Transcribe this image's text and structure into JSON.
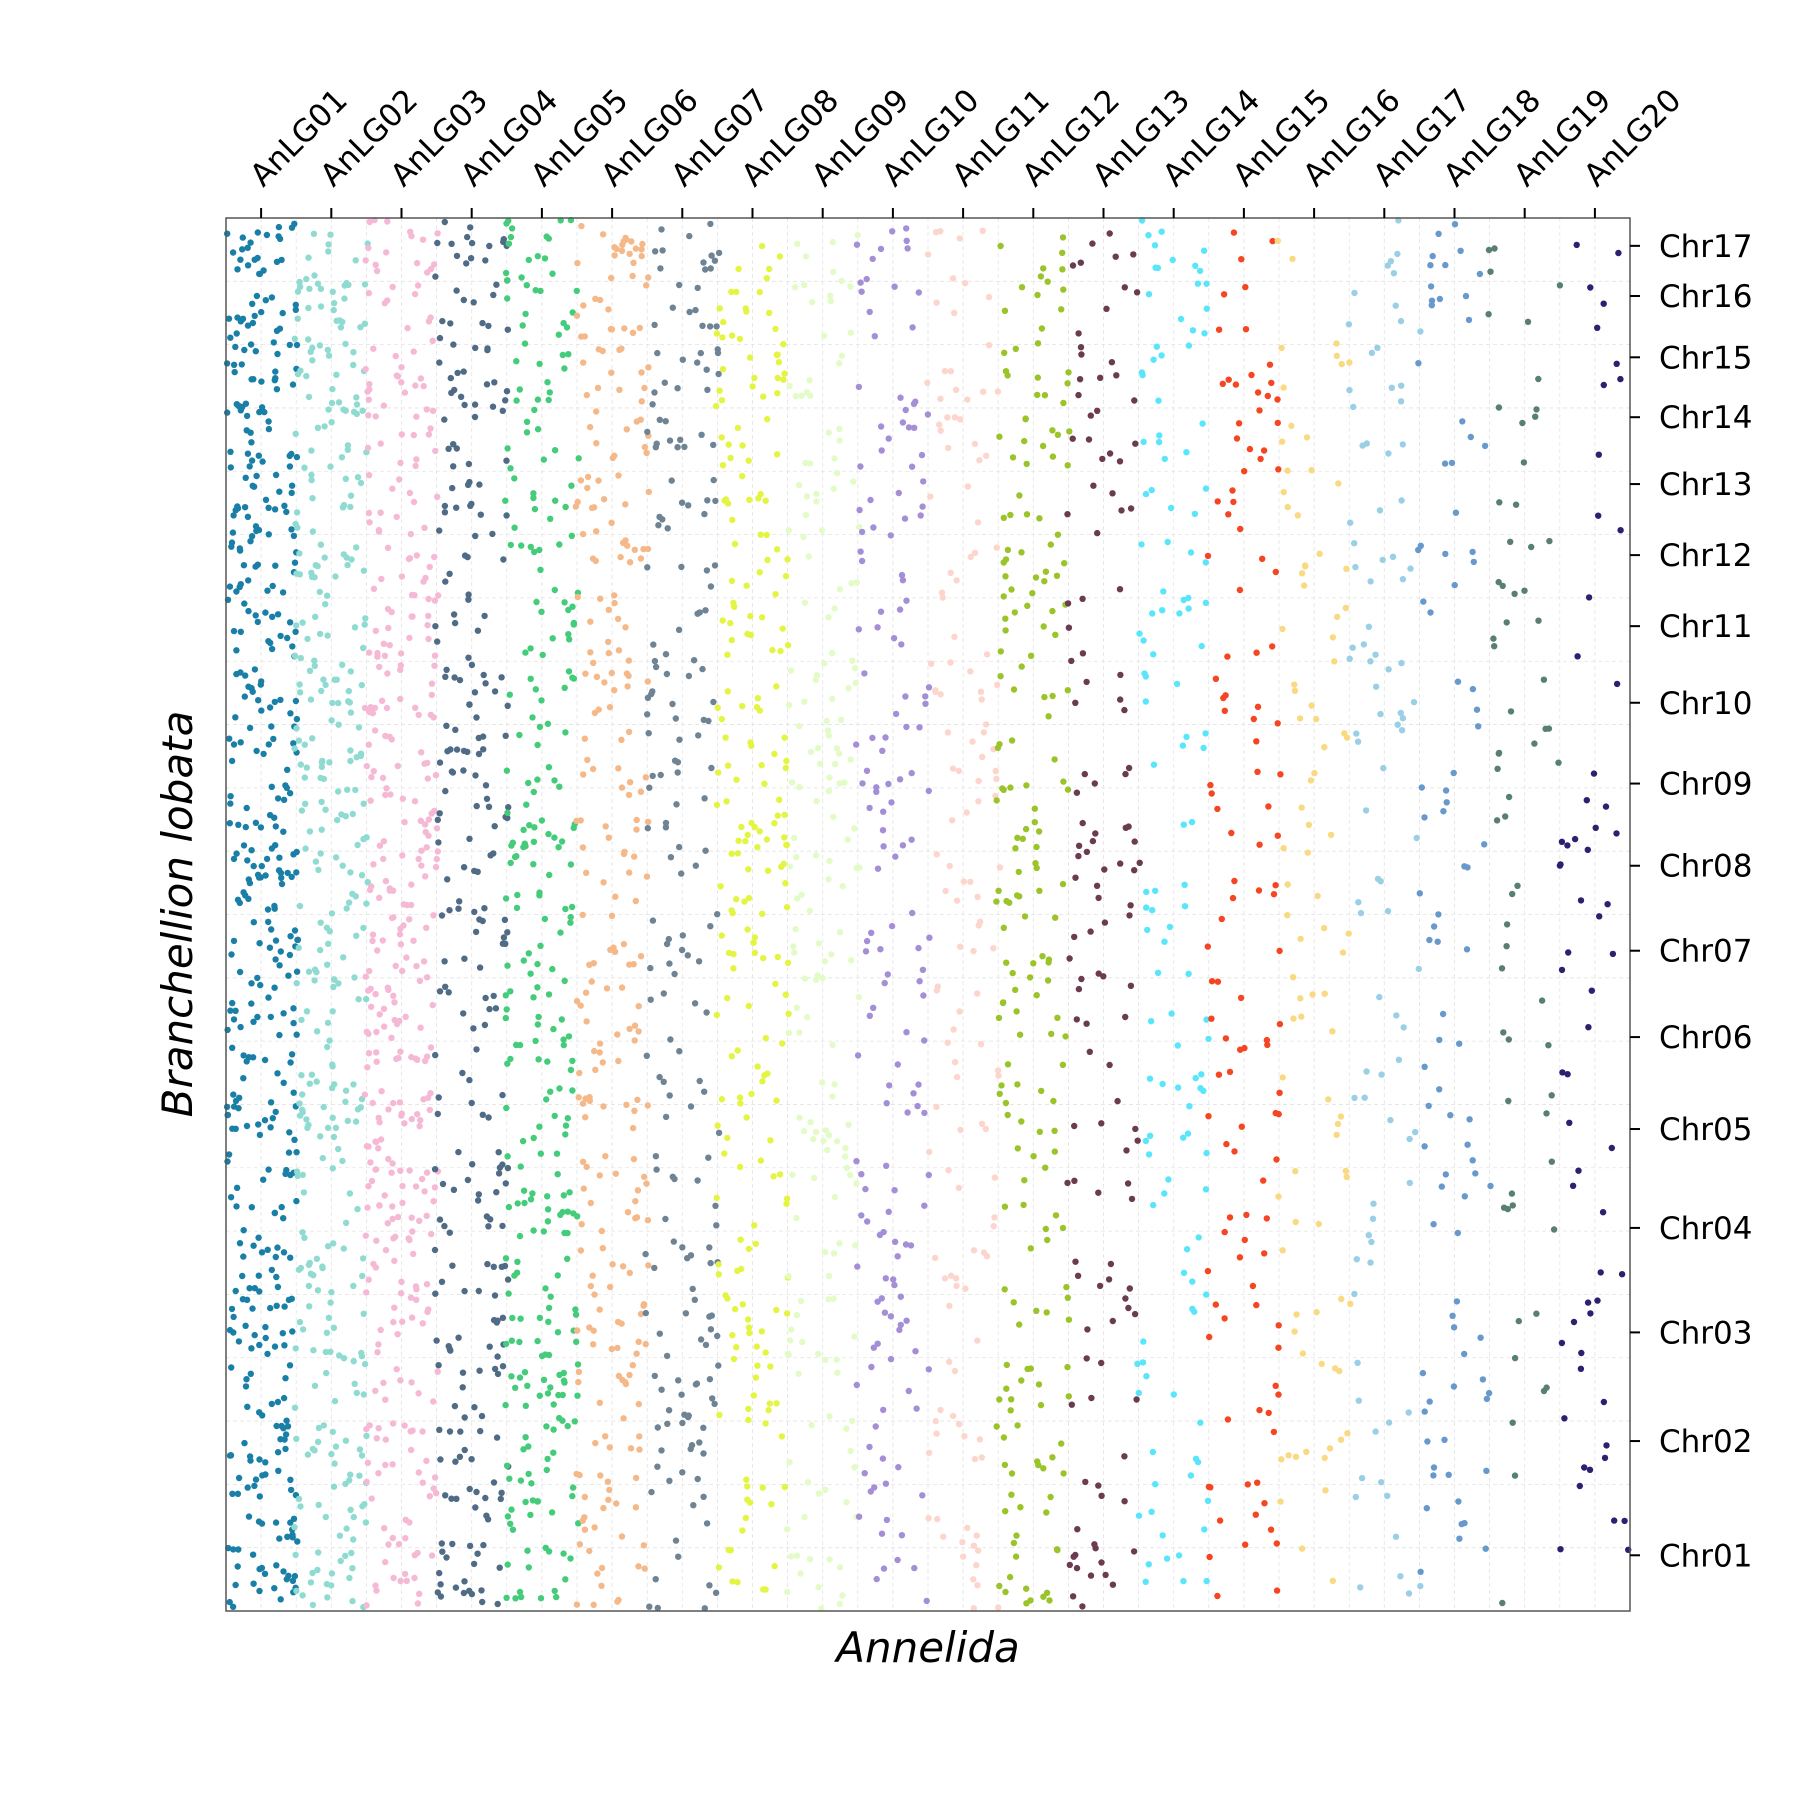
{
  "chart_data": {
    "type": "scatter",
    "title": "",
    "xlabel": "Annelida",
    "ylabel": "Branchellion lobata",
    "x_axis_position": "top",
    "y_axis_position": "right",
    "grid": true,
    "legend": "none",
    "x_categories": [
      "AnLG01",
      "AnLG02",
      "AnLG03",
      "AnLG04",
      "AnLG05",
      "AnLG06",
      "AnLG07",
      "AnLG08",
      "AnLG09",
      "AnLG10",
      "AnLG11",
      "AnLG12",
      "AnLG13",
      "AnLG14",
      "AnLG15",
      "AnLG16",
      "AnLG17",
      "AnLG18",
      "AnLG19",
      "AnLG20"
    ],
    "x_tick_positions": [
      0.025,
      0.075,
      0.125,
      0.175,
      0.225,
      0.275,
      0.325,
      0.375,
      0.425,
      0.475,
      0.525,
      0.575,
      0.625,
      0.675,
      0.725,
      0.775,
      0.825,
      0.875,
      0.925,
      0.975
    ],
    "x_band_widths": [
      5,
      5,
      5,
      5,
      5,
      5,
      5,
      5,
      5,
      5,
      5,
      5,
      5,
      5,
      5,
      5,
      5,
      5,
      5,
      5
    ],
    "y_categories": [
      "Chr01",
      "Chr02",
      "Chr03",
      "Chr04",
      "Chr05",
      "Chr06",
      "Chr07",
      "Chr08",
      "Chr09",
      "Chr10",
      "Chr11",
      "Chr12",
      "Chr13",
      "Chr14",
      "Chr15",
      "Chr16",
      "Chr17"
    ],
    "y_tick_positions": [
      0.04,
      0.122,
      0.2,
      0.275,
      0.346,
      0.412,
      0.474,
      0.535,
      0.594,
      0.652,
      0.707,
      0.758,
      0.809,
      0.857,
      0.9,
      0.944,
      0.98
    ],
    "xlim": [
      0,
      1
    ],
    "ylim": [
      0,
      1
    ],
    "series_colors": [
      "#1a7fa6",
      "#8fdbd2",
      "#f5b8d5",
      "#4f6b85",
      "#44cc7a",
      "#f4b889",
      "#6e8394",
      "#e3f542",
      "#e3fbc7",
      "#a48fd6",
      "#fcd5cd",
      "#9ac42a",
      "#6b3b50",
      "#5ae6fa",
      "#f54522",
      "#fad983",
      "#9bcfe6",
      "#6899cc",
      "#597f73",
      "#2b2170"
    ],
    "density": [
      52,
      40,
      42,
      30,
      33,
      30,
      22,
      25,
      20,
      18,
      15,
      22,
      14,
      14,
      13,
      10,
      10,
      10,
      7,
      7
    ],
    "seed": 7919
  }
}
